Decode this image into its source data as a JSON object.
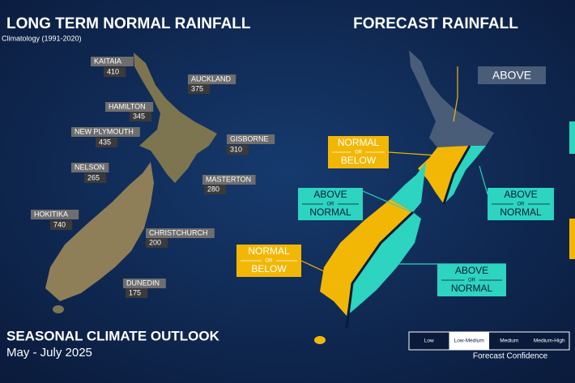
{
  "left_map": {
    "title": "LONG TERM NORMAL RAINFALL",
    "subtitle": "Climatology (1991-2020)",
    "stations": [
      {
        "name": "KAITAIA",
        "value": "410"
      },
      {
        "name": "AUCKLAND",
        "value": "375"
      },
      {
        "name": "HAMILTON",
        "value": "345"
      },
      {
        "name": "NEW PLYMOUTH",
        "value": "435"
      },
      {
        "name": "GISBORNE",
        "value": "310"
      },
      {
        "name": "NELSON",
        "value": "265"
      },
      {
        "name": "MASTERTON",
        "value": "280"
      },
      {
        "name": "HOKITIKA",
        "value": "740"
      },
      {
        "name": "CHRISTCHURCH",
        "value": "200"
      },
      {
        "name": "DUNEDIN",
        "value": "175"
      }
    ]
  },
  "right_map": {
    "title": "FORECAST RAINFALL",
    "regions": [
      {
        "lines": [
          "ABOVE"
        ]
      },
      {
        "lines": [
          "NORMAL",
          "OR",
          "BELOW"
        ]
      },
      {
        "lines": [
          "ABOVE",
          "OR",
          "NORMAL"
        ]
      },
      {
        "lines": [
          "ABOVE",
          "OR",
          "NORMAL"
        ]
      },
      {
        "lines": [
          "NORMAL",
          "OR",
          "BELOW"
        ]
      },
      {
        "lines": [
          "ABOVE",
          "OR",
          "NORMAL"
        ]
      }
    ]
  },
  "footer": {
    "title": "SEASONAL CLIMATE OUTLOOK",
    "period": "May - July 2025"
  },
  "confidence_legend": {
    "levels": [
      "Low",
      "Low-Medium",
      "Medium",
      "Medium-High"
    ],
    "selected": 1,
    "label": "Forecast Confidence"
  }
}
